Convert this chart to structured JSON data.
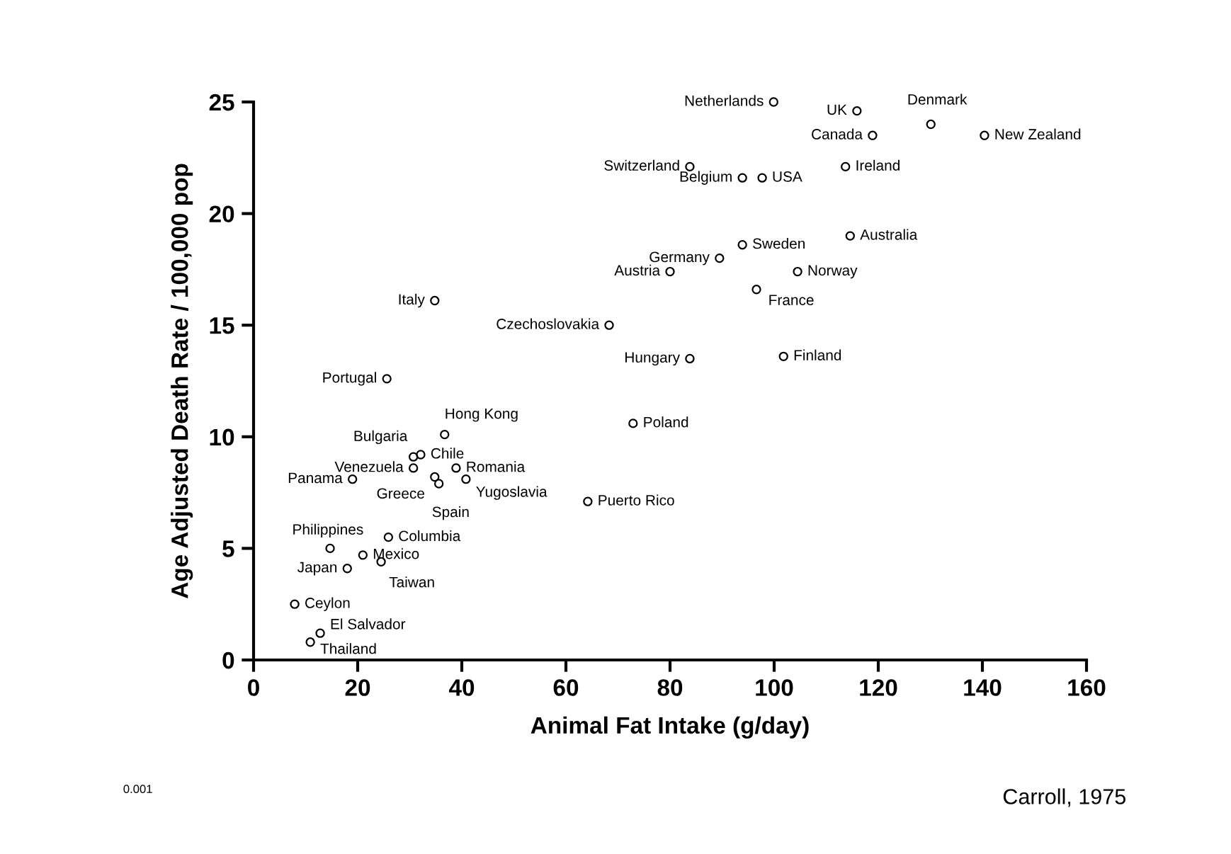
{
  "chart_data": {
    "type": "scatter",
    "xlabel": "Animal Fat Intake (g/day)",
    "ylabel": "Age Adjusted Death Rate / 100,000 pop",
    "xlim": [
      0,
      160
    ],
    "ylim": [
      0,
      25
    ],
    "xticks": [
      0,
      20,
      40,
      60,
      80,
      100,
      120,
      140,
      160
    ],
    "yticks": [
      0,
      5,
      10,
      15,
      20,
      25
    ],
    "grid": false,
    "legend": false,
    "marker": "circle",
    "annotations": [
      "0.001",
      "Carroll, 1975"
    ],
    "series": [
      {
        "name": "Netherlands",
        "color": "#000000",
        "x": [
          99.9
        ],
        "values": [
          25.0
        ]
      },
      {
        "name": "UK",
        "color": "#000000",
        "x": [
          115.9
        ],
        "values": [
          24.6
        ]
      },
      {
        "name": "Denmark",
        "color": "#000000",
        "x": [
          130.1
        ],
        "values": [
          24.0
        ]
      },
      {
        "name": "Canada",
        "color": "#000000",
        "x": [
          118.9
        ],
        "values": [
          23.5
        ]
      },
      {
        "name": "New Zealand",
        "color": "#000000",
        "x": [
          140.4
        ],
        "values": [
          23.5
        ]
      },
      {
        "name": "Switzerland",
        "color": "#000000",
        "x": [
          83.8
        ],
        "values": [
          22.1
        ]
      },
      {
        "name": "Belgium",
        "color": "#000000",
        "x": [
          93.9
        ],
        "values": [
          21.6
        ]
      },
      {
        "name": "USA",
        "color": "#000000",
        "x": [
          97.7
        ],
        "values": [
          21.6
        ]
      },
      {
        "name": "Ireland",
        "color": "#000000",
        "x": [
          113.7
        ],
        "values": [
          22.1
        ]
      },
      {
        "name": "Australia",
        "color": "#000000",
        "x": [
          114.6
        ],
        "values": [
          19.0
        ]
      },
      {
        "name": "Sweden",
        "color": "#000000",
        "x": [
          93.9
        ],
        "values": [
          18.6
        ]
      },
      {
        "name": "Germany",
        "color": "#000000",
        "x": [
          89.5
        ],
        "values": [
          18.0
        ]
      },
      {
        "name": "Austria",
        "color": "#000000",
        "x": [
          80.0
        ],
        "values": [
          17.4
        ]
      },
      {
        "name": "Norway",
        "color": "#000000",
        "x": [
          104.5
        ],
        "values": [
          17.4
        ]
      },
      {
        "name": "France",
        "color": "#000000",
        "x": [
          96.6
        ],
        "values": [
          16.6
        ]
      },
      {
        "name": "Italy",
        "color": "#000000",
        "x": [
          34.8
        ],
        "values": [
          16.1
        ]
      },
      {
        "name": "Czechoslovakia",
        "color": "#000000",
        "x": [
          68.3
        ],
        "values": [
          15.0
        ]
      },
      {
        "name": "Hungary",
        "color": "#000000",
        "x": [
          83.8
        ],
        "values": [
          13.5
        ]
      },
      {
        "name": "Finland",
        "color": "#000000",
        "x": [
          101.8
        ],
        "values": [
          13.6
        ]
      },
      {
        "name": "Portugal",
        "color": "#000000",
        "x": [
          25.6
        ],
        "values": [
          12.6
        ]
      },
      {
        "name": "Poland",
        "color": "#000000",
        "x": [
          72.9
        ],
        "values": [
          10.6
        ]
      },
      {
        "name": "Hong Kong",
        "color": "#000000",
        "x": [
          36.7
        ],
        "values": [
          10.1
        ]
      },
      {
        "name": "Bulgaria",
        "color": "#000000",
        "x": [
          30.7
        ],
        "values": [
          9.1
        ]
      },
      {
        "name": "Chile",
        "color": "#000000",
        "x": [
          32.1
        ],
        "values": [
          9.2
        ]
      },
      {
        "name": "Venezuela",
        "color": "#000000",
        "x": [
          30.7
        ],
        "values": [
          8.6
        ]
      },
      {
        "name": "Romania",
        "color": "#000000",
        "x": [
          38.9
        ],
        "values": [
          8.6
        ]
      },
      {
        "name": "Panama",
        "color": "#000000",
        "x": [
          19.0
        ],
        "values": [
          8.1
        ]
      },
      {
        "name": "Greece",
        "color": "#000000",
        "x": [
          34.8
        ],
        "values": [
          8.2
        ]
      },
      {
        "name": "Spain",
        "color": "#000000",
        "x": [
          35.6
        ],
        "values": [
          7.9
        ]
      },
      {
        "name": "Yugoslavia",
        "color": "#000000",
        "x": [
          40.8
        ],
        "values": [
          8.1
        ]
      },
      {
        "name": "Puerto Rico",
        "color": "#000000",
        "x": [
          64.2
        ],
        "values": [
          7.1
        ]
      },
      {
        "name": "Columbia",
        "color": "#000000",
        "x": [
          25.9
        ],
        "values": [
          5.5
        ]
      },
      {
        "name": "Philippines",
        "color": "#000000",
        "x": [
          14.7
        ],
        "values": [
          5.0
        ]
      },
      {
        "name": "Mexico",
        "color": "#000000",
        "x": [
          21.0
        ],
        "values": [
          4.7
        ]
      },
      {
        "name": "Taiwan",
        "color": "#000000",
        "x": [
          24.5
        ],
        "values": [
          4.4
        ]
      },
      {
        "name": "Japan",
        "color": "#000000",
        "x": [
          18.0
        ],
        "values": [
          4.1
        ]
      },
      {
        "name": "Ceylon",
        "color": "#000000",
        "x": [
          7.9
        ],
        "values": [
          2.5
        ]
      },
      {
        "name": "Thailand",
        "color": "#000000",
        "x": [
          10.9
        ],
        "values": [
          0.8
        ]
      },
      {
        "name": "El Salvador",
        "color": "#000000",
        "x": [
          12.8
        ],
        "values": [
          1.2
        ]
      }
    ]
  }
}
